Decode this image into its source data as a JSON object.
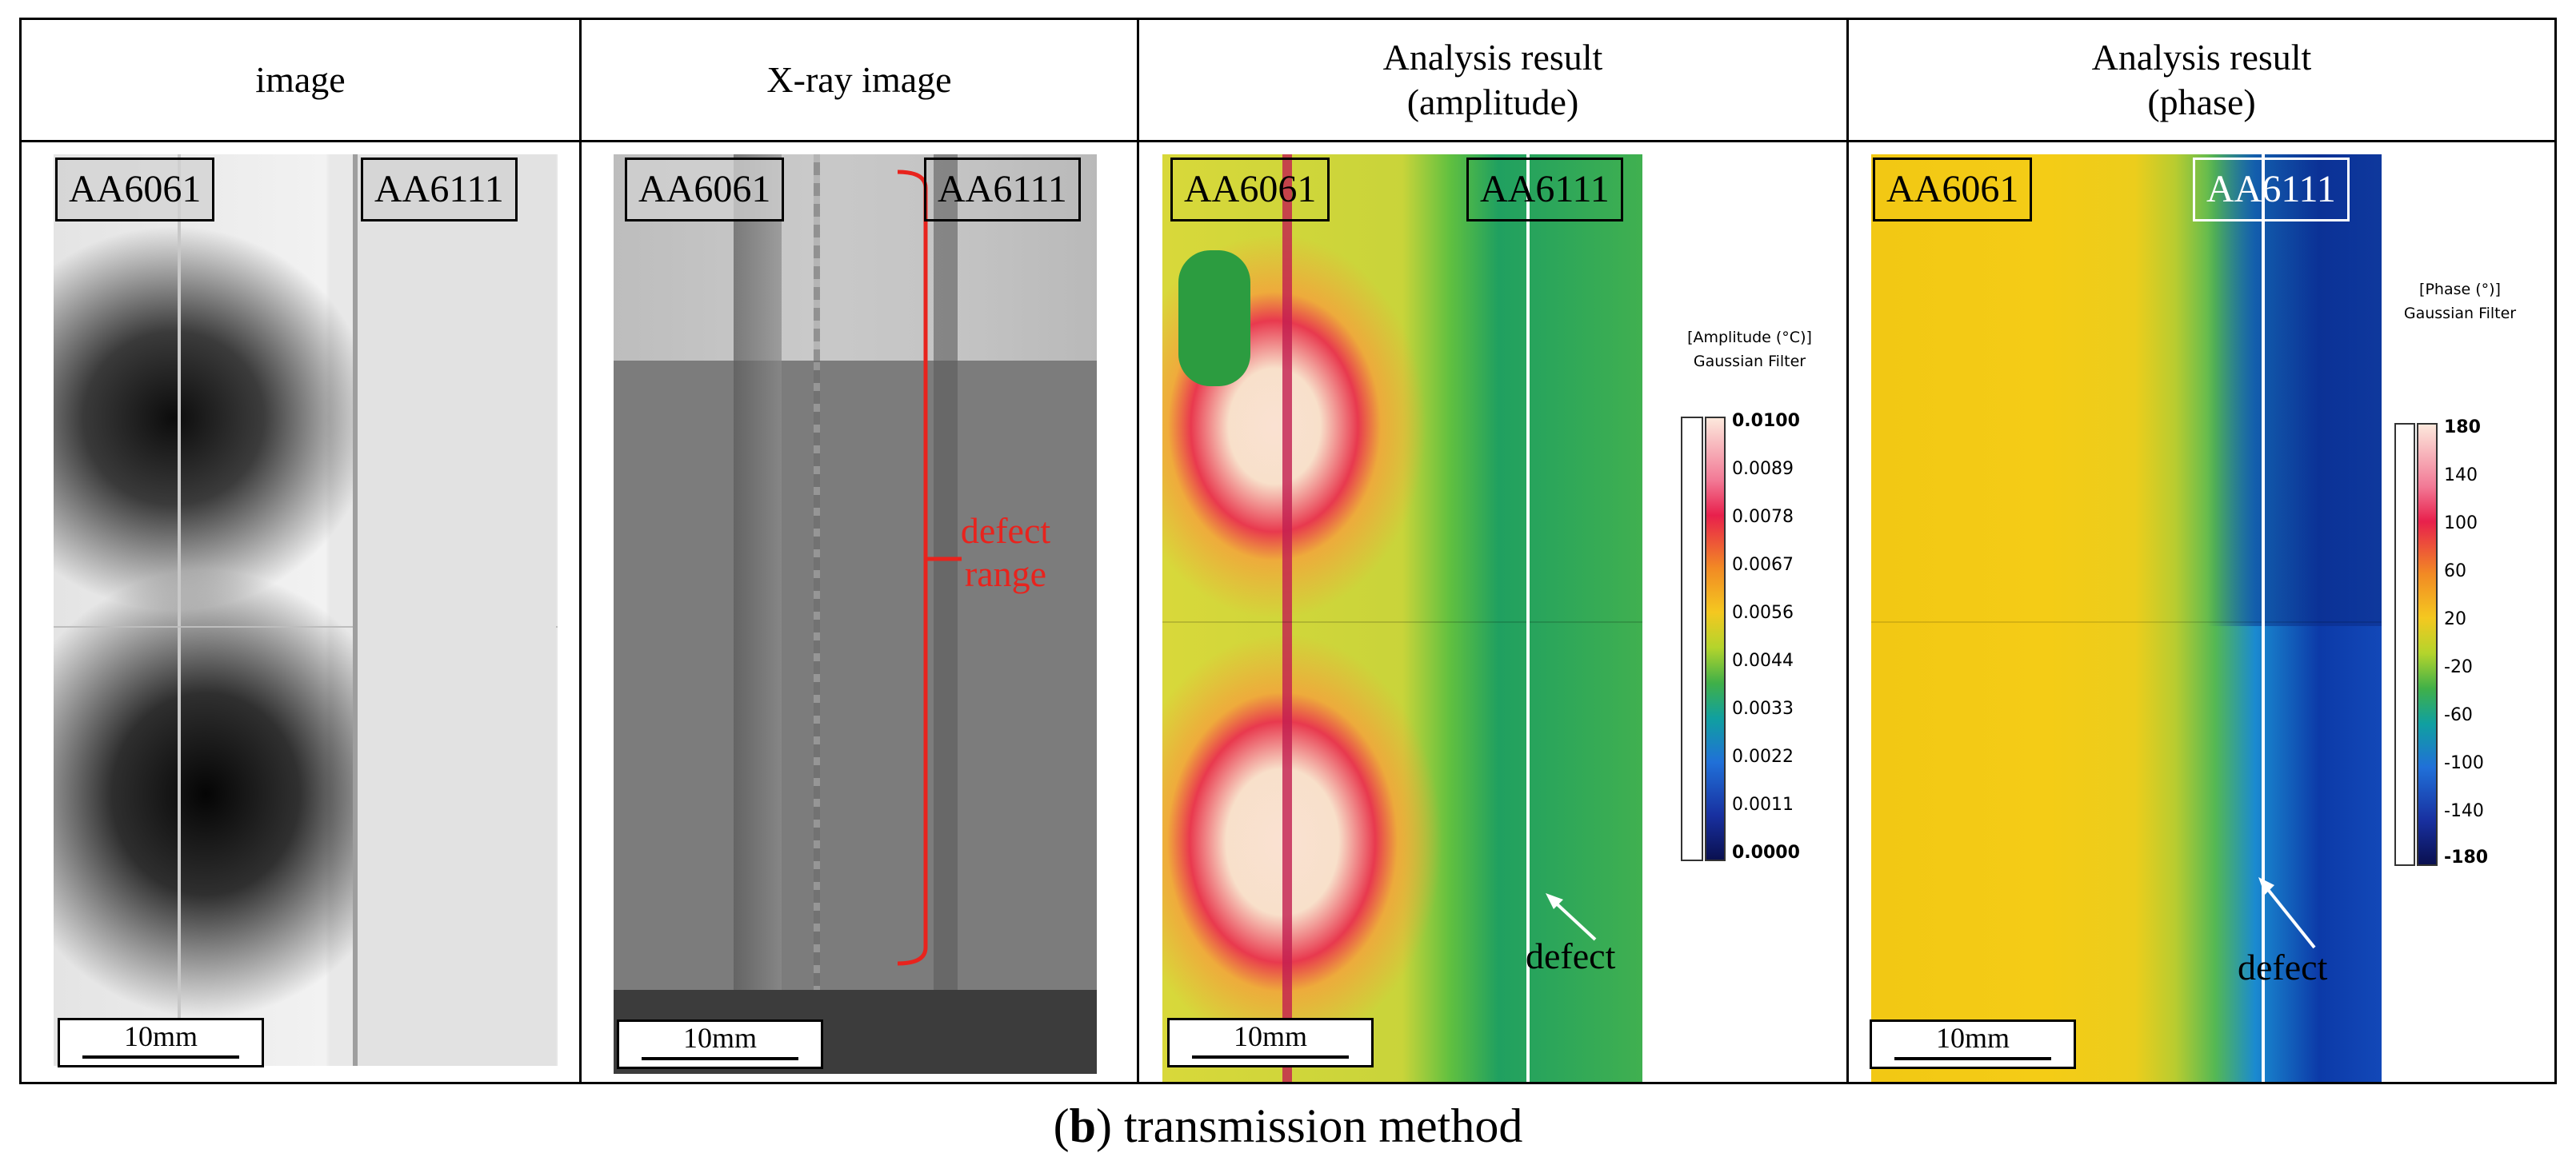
{
  "columns": [
    {
      "title": [
        "image"
      ]
    },
    {
      "title": [
        "X-ray image"
      ]
    },
    {
      "title": [
        "Analysis result",
        "(amplitude)"
      ]
    },
    {
      "title": [
        "Analysis result",
        "(phase)"
      ]
    }
  ],
  "labels": {
    "left": "AA6061",
    "right": "AA6111"
  },
  "scale_bar": "10mm",
  "xray": {
    "annotation": [
      "defect",
      "range"
    ]
  },
  "defect_label": "defect",
  "amplitude_colorbar": {
    "title": [
      "[Amplitude (°C)]",
      "Gaussian Filter"
    ],
    "ticks": [
      "0.0100",
      "0.0089",
      "0.0078",
      "0.0067",
      "0.0056",
      "0.0044",
      "0.0033",
      "0.0022",
      "0.0011",
      "0.0000"
    ]
  },
  "phase_colorbar": {
    "title": [
      "[Phase (°)]",
      "Gaussian Filter"
    ],
    "ticks": [
      "180",
      "140",
      "100",
      "60",
      "20",
      "-20",
      "-60",
      "-100",
      "-140",
      "-180"
    ]
  },
  "caption": {
    "bold": "b",
    "rest": " transmission method"
  },
  "colors": {
    "defect_red": "#e8231d",
    "border": "#000000"
  }
}
